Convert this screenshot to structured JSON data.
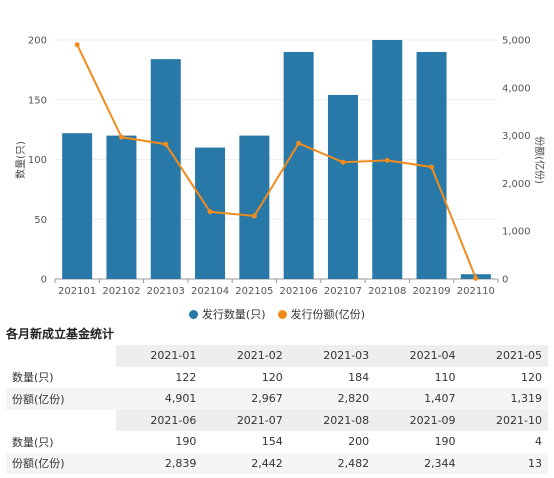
{
  "chart_data": {
    "type": "bar",
    "categories": [
      "202101",
      "202102",
      "202103",
      "202104",
      "202105",
      "202106",
      "202107",
      "202108",
      "202109",
      "202110"
    ],
    "series": [
      {
        "name": "发行数量(只)",
        "type": "bar",
        "axis": "left",
        "color": "#2878a8",
        "values": [
          122,
          120,
          184,
          110,
          120,
          190,
          154,
          200,
          190,
          4
        ]
      },
      {
        "name": "发行份额(亿份)",
        "type": "line",
        "axis": "right",
        "color": "#f08c1e",
        "values": [
          4901,
          2967,
          2820,
          1407,
          1319,
          2839,
          2442,
          2482,
          2344,
          13
        ]
      }
    ],
    "ylabel": "数量(只)",
    "y2label": "份额(亿份)",
    "ylim": [
      0,
      200
    ],
    "y2lim": [
      0,
      5000
    ],
    "yticks": [
      "0",
      "50",
      "100",
      "150",
      "200"
    ],
    "y2ticks": [
      "0",
      "1,000",
      "2,000",
      "3,000",
      "4,000",
      "5,000"
    ],
    "grid": true,
    "legend_position": "bottom"
  },
  "table": {
    "title": "各月新成立基金统计",
    "blocks": [
      {
        "months": [
          "2021-01",
          "2021-02",
          "2021-03",
          "2021-04",
          "2021-05"
        ],
        "rows": [
          {
            "label": "数量(只)",
            "values": [
              "122",
              "120",
              "184",
              "110",
              "120"
            ]
          },
          {
            "label": "份额(亿份)",
            "values": [
              "4,901",
              "2,967",
              "2,820",
              "1,407",
              "1,319"
            ]
          }
        ]
      },
      {
        "months": [
          "2021-06",
          "2021-07",
          "2021-08",
          "2021-09",
          "2021-10"
        ],
        "rows": [
          {
            "label": "数量(只)",
            "values": [
              "190",
              "154",
              "200",
              "190",
              "4"
            ]
          },
          {
            "label": "份额(亿份)",
            "values": [
              "2,839",
              "2,442",
              "2,482",
              "2,344",
              "13"
            ]
          }
        ]
      }
    ]
  }
}
